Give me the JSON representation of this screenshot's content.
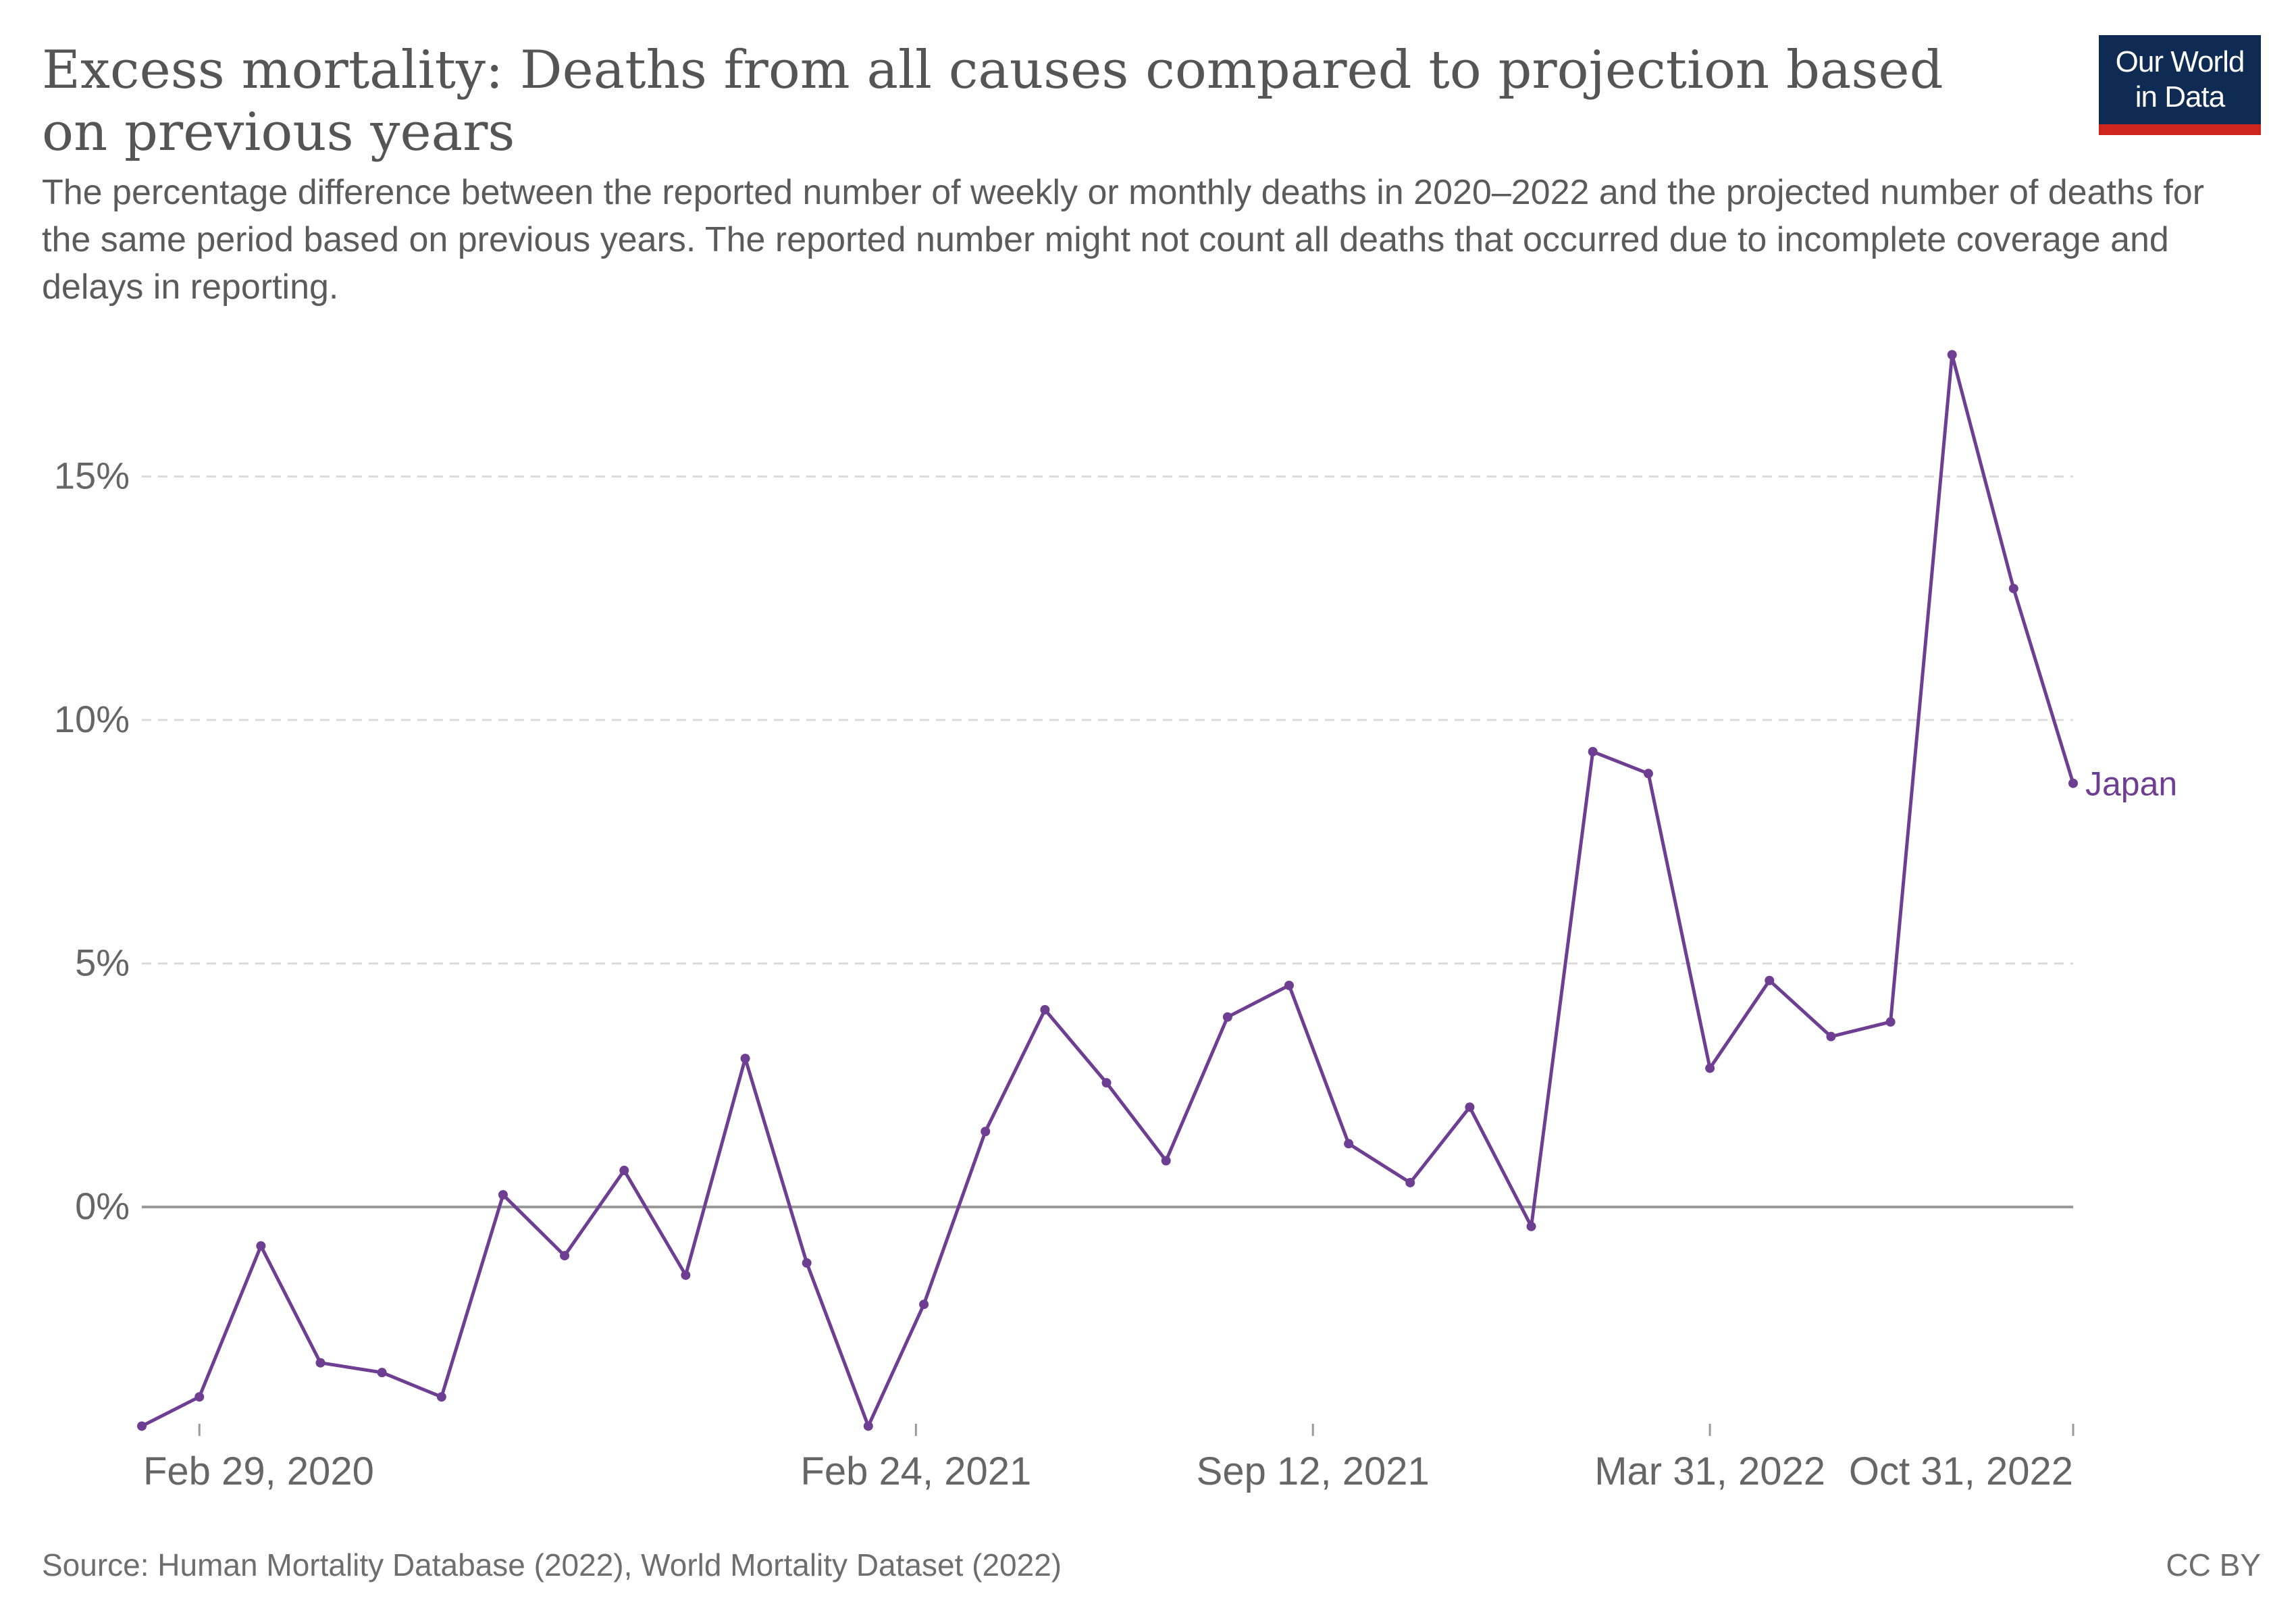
{
  "header": {
    "title": "Excess mortality: Deaths from all causes compared to projection based on previous years",
    "subtitle": "The percentage difference between the reported number of weekly or monthly deaths in 2020–2022 and the projected number of deaths for the same period based on previous years. The reported number might not count all deaths that occurred due to incomplete coverage and delays in reporting."
  },
  "logo": {
    "line1": "Our World",
    "line2": "in Data",
    "bg_color": "#0f2b53",
    "accent_color": "#ce261e"
  },
  "footer": {
    "source": "Source: Human Mortality Database (2022), World Mortality Dataset (2022)",
    "license": "CC BY"
  },
  "chart_data": {
    "type": "line",
    "title": "Excess mortality: Deaths from all causes compared to projection based on previous years",
    "x_tick_labels": [
      "Feb 29, 2020",
      "Feb 24, 2021",
      "Sep 12, 2021",
      "Mar 31, 2022",
      "Oct 31, 2022"
    ],
    "y_tick_labels": [
      "0%",
      "5%",
      "10%",
      "15%"
    ],
    "y_ticks": [
      0,
      5,
      10,
      15
    ],
    "ylim": [
      -4.5,
      17.5
    ],
    "grid": true,
    "series": [
      {
        "name": "Japan",
        "color": "#6d3e91",
        "points": [
          {
            "x": "2020-01-31",
            "y": -4.5
          },
          {
            "x": "2020-02-29",
            "y": -3.9
          },
          {
            "x": "2020-03-31",
            "y": -0.8
          },
          {
            "x": "2020-04-30",
            "y": -3.2
          },
          {
            "x": "2020-05-31",
            "y": -3.4
          },
          {
            "x": "2020-06-30",
            "y": -3.9
          },
          {
            "x": "2020-07-31",
            "y": 0.25
          },
          {
            "x": "2020-08-31",
            "y": -1.0
          },
          {
            "x": "2020-09-30",
            "y": 0.75
          },
          {
            "x": "2020-10-31",
            "y": -1.4
          },
          {
            "x": "2020-11-30",
            "y": 3.05
          },
          {
            "x": "2020-12-31",
            "y": -1.15
          },
          {
            "x": "2021-01-31",
            "y": -4.5
          },
          {
            "x": "2021-02-28",
            "y": -2.0
          },
          {
            "x": "2021-03-31",
            "y": 1.55
          },
          {
            "x": "2021-04-30",
            "y": 4.05
          },
          {
            "x": "2021-05-31",
            "y": 2.55
          },
          {
            "x": "2021-06-30",
            "y": 0.95
          },
          {
            "x": "2021-07-31",
            "y": 3.9
          },
          {
            "x": "2021-08-31",
            "y": 4.55
          },
          {
            "x": "2021-09-30",
            "y": 1.3
          },
          {
            "x": "2021-10-31",
            "y": 0.5
          },
          {
            "x": "2021-11-30",
            "y": 2.05
          },
          {
            "x": "2021-12-31",
            "y": -0.4
          },
          {
            "x": "2022-01-31",
            "y": 9.35
          },
          {
            "x": "2022-02-28",
            "y": 8.9
          },
          {
            "x": "2022-03-31",
            "y": 2.85
          },
          {
            "x": "2022-04-30",
            "y": 4.65
          },
          {
            "x": "2022-05-31",
            "y": 3.5
          },
          {
            "x": "2022-06-30",
            "y": 3.8
          },
          {
            "x": "2022-07-31",
            "y": 17.5
          },
          {
            "x": "2022-08-31",
            "y": 12.7
          },
          {
            "x": "2022-09-30",
            "y": 8.7
          }
        ]
      }
    ]
  }
}
